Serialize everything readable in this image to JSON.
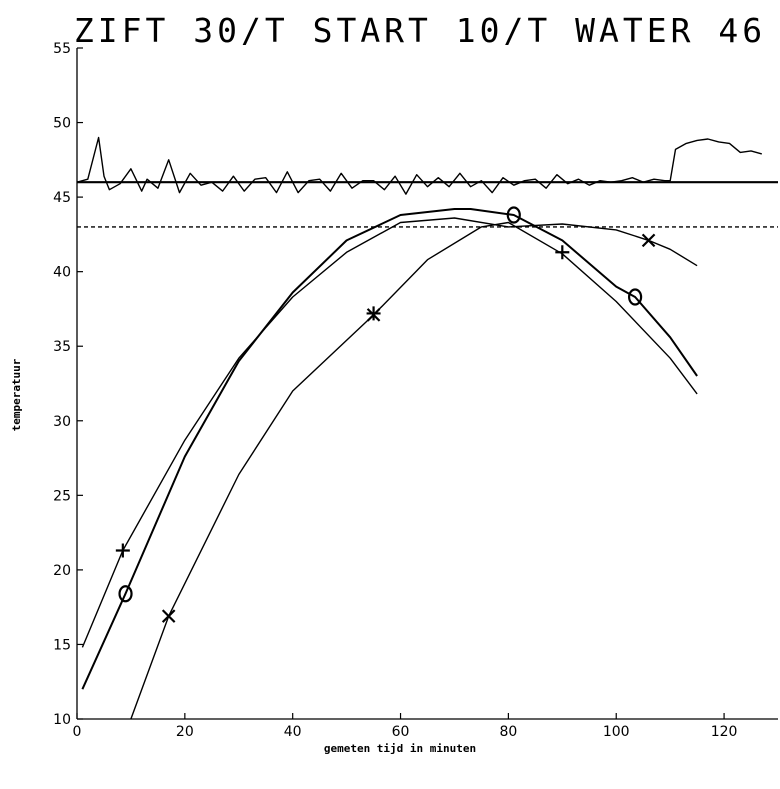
{
  "chart_data": {
    "type": "line",
    "title": "ZIFT 30/T START 10/T WATER 46",
    "xlabel": "gemeten tijd in minuten",
    "ylabel": "temperatuur",
    "xlim": [
      0,
      130
    ],
    "ylim": [
      10,
      55
    ],
    "x_ticks": [
      "0",
      "20",
      "40",
      "60",
      "80",
      "100",
      "120"
    ],
    "y_ticks": [
      "10",
      "15",
      "20",
      "25",
      "30",
      "35",
      "40",
      "45",
      "50",
      "55"
    ],
    "grid": false,
    "reference_lines": [
      {
        "style": "solid",
        "y": 46
      },
      {
        "style": "dashed",
        "y": 43
      }
    ],
    "series": [
      {
        "marker": "plus",
        "x": [
          1,
          8.5,
          20,
          30,
          40,
          50,
          60,
          70,
          80,
          90,
          100,
          106,
          110,
          115
        ],
        "y": [
          14.8,
          21.3,
          28.7,
          34.2,
          38.3,
          41.3,
          43.3,
          43.6,
          43.0,
          43.2,
          42.8,
          42.1,
          41.5,
          40.4
        ]
      },
      {
        "marker": "circle",
        "x": [
          1,
          9,
          20,
          30,
          40,
          50,
          60,
          70,
          73,
          81,
          90,
          100,
          103.5,
          110,
          115
        ],
        "y": [
          12.0,
          18.4,
          27.6,
          34.0,
          38.6,
          42.1,
          43.8,
          44.2,
          44.2,
          43.8,
          42.1,
          39.0,
          38.3,
          35.6,
          33.0
        ]
      },
      {
        "marker": "x",
        "x": [
          10,
          17,
          30,
          40,
          55,
          65,
          75,
          80,
          90,
          100,
          110,
          115
        ],
        "y": [
          10.0,
          16.9,
          26.4,
          32.0,
          37.1,
          40.8,
          43.0,
          43.3,
          41.2,
          38.0,
          34.2,
          31.8
        ]
      },
      {
        "name": "",
        "x": [
          0,
          2,
          4,
          5,
          6,
          8,
          10,
          12,
          13,
          15,
          17,
          19,
          21,
          23,
          25,
          27,
          29,
          31,
          33,
          35,
          37,
          39,
          41,
          43,
          45,
          47,
          49,
          51,
          53,
          55,
          57,
          59,
          61,
          63,
          65,
          67,
          69,
          71,
          73,
          75,
          77,
          79,
          81,
          83,
          85,
          87,
          89,
          91,
          93,
          95,
          97,
          99,
          101,
          103,
          105,
          107,
          109,
          110,
          111,
          113,
          115,
          117,
          119,
          121,
          123,
          125,
          127
        ],
        "y": [
          46.0,
          46.2,
          49.0,
          46.4,
          45.5,
          45.9,
          46.9,
          45.4,
          46.2,
          45.6,
          47.5,
          45.3,
          46.6,
          45.8,
          46.0,
          45.4,
          46.4,
          45.4,
          46.2,
          46.3,
          45.3,
          46.7,
          45.3,
          46.1,
          46.2,
          45.4,
          46.6,
          45.6,
          46.1,
          46.1,
          45.5,
          46.4,
          45.2,
          46.5,
          45.7,
          46.3,
          45.7,
          46.6,
          45.7,
          46.1,
          45.3,
          46.3,
          45.8,
          46.1,
          46.2,
          45.6,
          46.5,
          45.9,
          46.2,
          45.8,
          46.1,
          46.0,
          46.1,
          46.3,
          46.0,
          46.2,
          46.1,
          46.1,
          48.2,
          48.6,
          48.8,
          48.9,
          48.7,
          48.6,
          48.0,
          48.1,
          47.9
        ]
      }
    ],
    "colors": {
      "ink": "#000000",
      "background": "#ffffff"
    }
  }
}
